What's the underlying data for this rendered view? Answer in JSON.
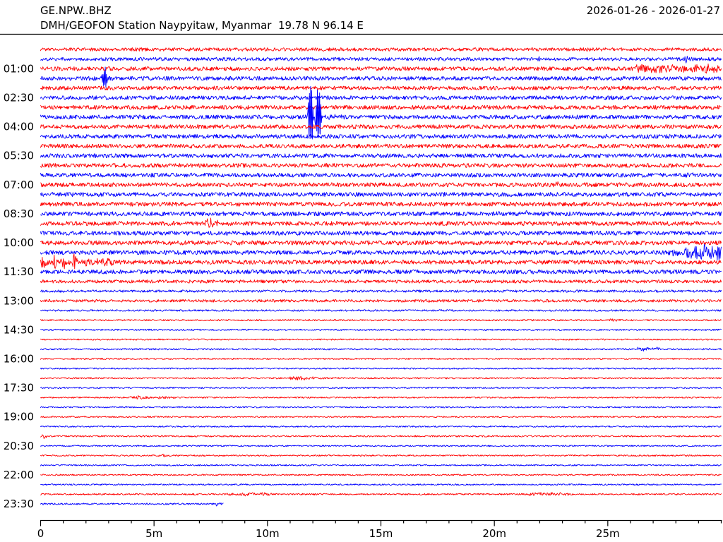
{
  "header": {
    "station_id": "GE.NPW..BHZ",
    "date_range": "2026-01-26 - 2026-01-27",
    "station_desc": "DMH/GEOFON Station Naypyitaw, Myanmar  19.78 N 96.14 E"
  },
  "chart_data": {
    "type": "line",
    "variant": "seismogram-dayplot",
    "title": "GE.NPW..BHZ",
    "subtitle": "DMH/GEOFON Station Naypyitaw, Myanmar  19.78 N 96.14 E",
    "date_range": "2026-01-26 - 2026-01-27",
    "legend": "none",
    "grid": false,
    "x_axis": {
      "range_min": [
        0,
        30
      ],
      "major_tick_positions_min": [
        0,
        5,
        10,
        15,
        20,
        25
      ],
      "major_tick_labels": [
        "0",
        "5m",
        "10m",
        "15m",
        "20m",
        "25m"
      ],
      "minor_tick_every_min": 1,
      "minutes_per_row": 30
    },
    "y_axis": {
      "labels": [
        "01:00",
        "02:30",
        "04:00",
        "05:30",
        "07:00",
        "08:30",
        "10:00",
        "11:30",
        "13:00",
        "14:30",
        "16:00",
        "17:30",
        "19:00",
        "20:30",
        "22:00",
        "23:30"
      ],
      "label_every_n_rows": 3,
      "first_labeled_row": 3
    },
    "trace_colors": {
      "red": "#ff0000",
      "blue": "#0000ff"
    },
    "rows": [
      {
        "t": "00:00",
        "c": "red",
        "n": 2.4
      },
      {
        "t": "00:30",
        "c": "blue",
        "n": 2.4,
        "ev": [
          {
            "s": 21.9,
            "e": 22.35,
            "a": 4,
            "k": "burst"
          },
          {
            "s": 28.35,
            "e": 29.0,
            "a": 5.5,
            "k": "burst"
          }
        ]
      },
      {
        "t": "01:00",
        "c": "red",
        "n": 2.8,
        "ev": [
          {
            "s": 26.2,
            "e": 30,
            "a": 4.5,
            "k": "band"
          }
        ]
      },
      {
        "t": "01:30",
        "c": "blue",
        "n": 2.8,
        "ev": [
          {
            "s": 2.68,
            "e": 2.95,
            "a": 17,
            "k": "spike"
          }
        ]
      },
      {
        "t": "02:00",
        "c": "red",
        "n": 2.8
      },
      {
        "t": "02:30",
        "c": "blue",
        "n": 2.8
      },
      {
        "t": "03:00",
        "c": "red",
        "n": 2.9
      },
      {
        "t": "03:30",
        "c": "blue",
        "n": 2.9,
        "ev": [
          {
            "s": 11.55,
            "e": 13.5,
            "a": 9,
            "k": "burst"
          },
          {
            "s": 11.78,
            "e": 12.03,
            "a": 50,
            "k": "spike"
          },
          {
            "s": 12.1,
            "e": 12.38,
            "a": 46,
            "k": "spike"
          }
        ]
      },
      {
        "t": "04:00",
        "c": "red",
        "n": 3.0
      },
      {
        "t": "04:30",
        "c": "blue",
        "n": 2.9
      },
      {
        "t": "05:00",
        "c": "red",
        "n": 2.9
      },
      {
        "t": "05:30",
        "c": "blue",
        "n": 2.9
      },
      {
        "t": "06:00",
        "c": "red",
        "n": 2.9
      },
      {
        "t": "06:30",
        "c": "blue",
        "n": 2.9,
        "ev": [
          {
            "s": 28.4,
            "e": 29.2,
            "a": 3.8,
            "k": "burst"
          }
        ]
      },
      {
        "t": "07:00",
        "c": "red",
        "n": 3.0,
        "ev": [
          {
            "s": 22.6,
            "e": 23.1,
            "a": 3.8,
            "k": "burst"
          }
        ]
      },
      {
        "t": "07:30",
        "c": "blue",
        "n": 3.0
      },
      {
        "t": "08:00",
        "c": "red",
        "n": 3.0
      },
      {
        "t": "08:30",
        "c": "blue",
        "n": 3.0,
        "ev": [
          {
            "s": 21.3,
            "e": 21.9,
            "a": 4,
            "k": "burst"
          }
        ]
      },
      {
        "t": "09:00",
        "c": "red",
        "n": 3.0,
        "ev": [
          {
            "s": 7.25,
            "e": 7.95,
            "a": 12,
            "k": "burst"
          }
        ]
      },
      {
        "t": "09:30",
        "c": "blue",
        "n": 3.0
      },
      {
        "t": "10:00",
        "c": "red",
        "n": 3.1
      },
      {
        "t": "10:30",
        "c": "blue",
        "n": 3.0,
        "ev": [
          {
            "s": 27.5,
            "e": 28.4,
            "a": 4,
            "k": "band"
          },
          {
            "s": 28.4,
            "e": 30,
            "a": 9,
            "k": "band"
          }
        ]
      },
      {
        "t": "11:00",
        "c": "red",
        "n": 3.0,
        "ev": [
          {
            "s": 0,
            "e": 0.45,
            "a": 10,
            "k": "burst"
          },
          {
            "s": 0.5,
            "e": 0.95,
            "a": 14,
            "k": "burst"
          },
          {
            "s": 0.95,
            "e": 1.35,
            "a": 13,
            "k": "burst"
          },
          {
            "s": 1.35,
            "e": 1.8,
            "a": 15,
            "k": "burst"
          },
          {
            "s": 1.8,
            "e": 3.2,
            "a": 4,
            "k": "band"
          }
        ]
      },
      {
        "t": "11:30",
        "c": "blue",
        "n": 3.0
      },
      {
        "t": "12:00",
        "c": "red",
        "n": 2.3
      },
      {
        "t": "12:30",
        "c": "blue",
        "n": 1.7
      },
      {
        "t": "13:00",
        "c": "red",
        "n": 1.9
      },
      {
        "t": "13:30",
        "c": "blue",
        "n": 1.3
      },
      {
        "t": "14:00",
        "c": "red",
        "n": 1.1,
        "ev": [
          {
            "s": 25.0,
            "e": 25.6,
            "a": 3.5,
            "k": "burst"
          }
        ]
      },
      {
        "t": "14:30",
        "c": "blue",
        "n": 1.1
      },
      {
        "t": "15:00",
        "c": "red",
        "n": 1.0
      },
      {
        "t": "15:30",
        "c": "blue",
        "n": 1.1,
        "ev": [
          {
            "s": 26.3,
            "e": 27.3,
            "a": 2.2,
            "k": "band"
          }
        ]
      },
      {
        "t": "16:00",
        "c": "red",
        "n": 1.0
      },
      {
        "t": "16:30",
        "c": "blue",
        "n": 1.0
      },
      {
        "t": "17:00",
        "c": "red",
        "n": 1.0,
        "ev": [
          {
            "s": 10.75,
            "e": 13.6,
            "a": 3,
            "k": "burst"
          }
        ]
      },
      {
        "t": "17:30",
        "c": "blue",
        "n": 1.0
      },
      {
        "t": "18:00",
        "c": "red",
        "n": 1.0,
        "ev": [
          {
            "s": 3.85,
            "e": 6.3,
            "a": 3.2,
            "k": "burst"
          }
        ]
      },
      {
        "t": "18:30",
        "c": "blue",
        "n": 1.0
      },
      {
        "t": "19:00",
        "c": "red",
        "n": 1.0
      },
      {
        "t": "19:30",
        "c": "blue",
        "n": 1.0,
        "ev": [
          {
            "s": 8.3,
            "e": 8.7,
            "a": 2.8,
            "k": "burst"
          }
        ]
      },
      {
        "t": "20:00",
        "c": "red",
        "n": 1.1,
        "ev": [
          {
            "s": 0,
            "e": 0.55,
            "a": 3.5,
            "k": "burst"
          }
        ]
      },
      {
        "t": "20:30",
        "c": "blue",
        "n": 1.0
      },
      {
        "t": "21:00",
        "c": "red",
        "n": 1.0,
        "ev": [
          {
            "s": 5.3,
            "e": 5.85,
            "a": 2.2,
            "k": "burst"
          }
        ]
      },
      {
        "t": "21:30",
        "c": "blue",
        "n": 1.0
      },
      {
        "t": "22:00",
        "c": "red",
        "n": 1.0
      },
      {
        "t": "22:30",
        "c": "blue",
        "n": 1.0
      },
      {
        "t": "23:00",
        "c": "red",
        "n": 1.1,
        "ev": [
          {
            "s": 8.2,
            "e": 10.2,
            "a": 1.8,
            "k": "band"
          },
          {
            "s": 21.4,
            "e": 23.5,
            "a": 1.8,
            "k": "band"
          }
        ]
      },
      {
        "t": "23:30",
        "c": "blue",
        "n": 1.2,
        "end": 8.05,
        "ev": [
          {
            "s": 7.7,
            "e": 8.05,
            "a": 3,
            "k": "burst"
          }
        ]
      }
    ]
  }
}
